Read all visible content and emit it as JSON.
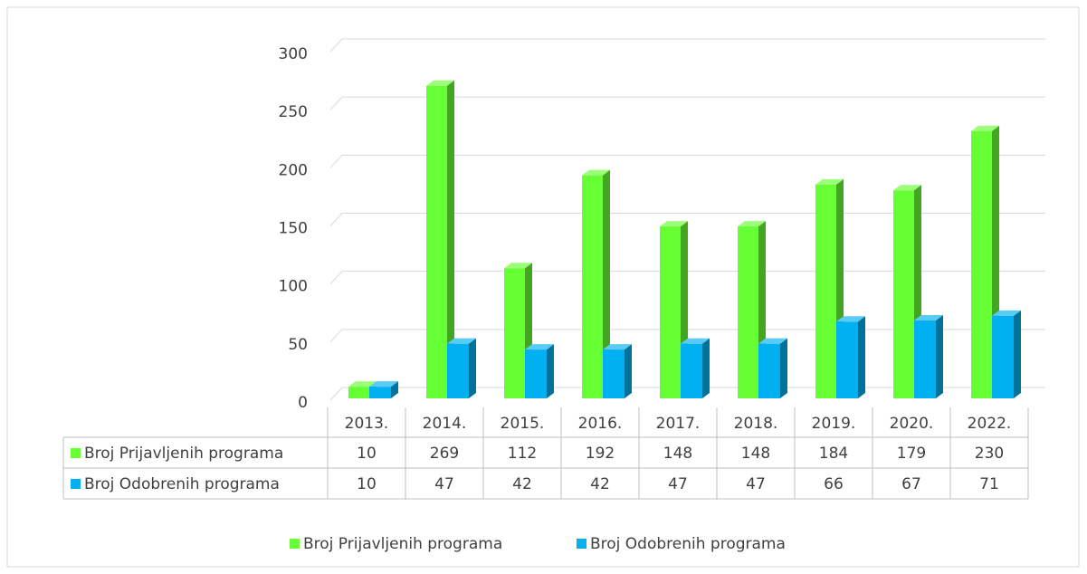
{
  "chart_data": {
    "type": "bar",
    "categories": [
      "2013.",
      "2014.",
      "2015.",
      "2016.",
      "2017.",
      "2018.",
      "2019.",
      "2020.",
      "2022."
    ],
    "series": [
      {
        "name": "Broj Prijavljenih programa",
        "color": "#66ff33",
        "values": [
          10,
          269,
          112,
          192,
          148,
          148,
          184,
          179,
          230
        ]
      },
      {
        "name": "Broj Odobrenih programa",
        "color": "#00b0f0",
        "values": [
          10,
          47,
          42,
          42,
          47,
          47,
          66,
          67,
          71
        ]
      }
    ],
    "ylim": [
      0,
      300
    ],
    "yticks": [
      0,
      50,
      100,
      150,
      200,
      250,
      300
    ],
    "grid": true,
    "legend": "bottom"
  }
}
